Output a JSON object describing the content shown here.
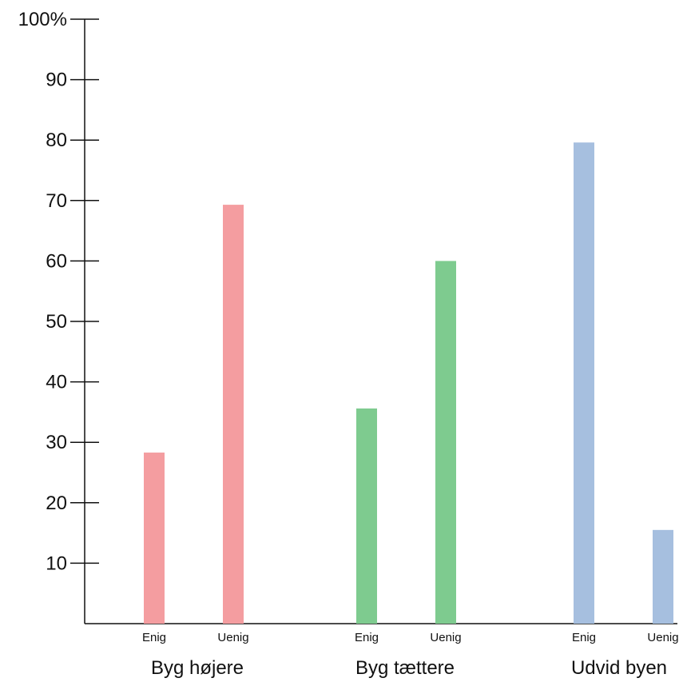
{
  "chart_data": {
    "type": "bar",
    "title": "",
    "xlabel": "",
    "ylabel": "",
    "ylim": [
      0,
      100
    ],
    "grid": false,
    "y_ticks": [
      {
        "value": 10,
        "label": "10"
      },
      {
        "value": 20,
        "label": "20"
      },
      {
        "value": 30,
        "label": "30"
      },
      {
        "value": 40,
        "label": "40"
      },
      {
        "value": 50,
        "label": "50"
      },
      {
        "value": 60,
        "label": "60"
      },
      {
        "value": 70,
        "label": "70"
      },
      {
        "value": 80,
        "label": "80"
      },
      {
        "value": 90,
        "label": "90"
      },
      {
        "value": 100,
        "label": "100%"
      }
    ],
    "groups": [
      {
        "label": "Byg højere",
        "color": "#f49da0",
        "bars": [
          {
            "label": "Enig",
            "value": 28.3
          },
          {
            "label": "Uenig",
            "value": 69.3
          }
        ]
      },
      {
        "label": "Byg tættere",
        "color": "#7ecb8f",
        "bars": [
          {
            "label": "Enig",
            "value": 35.6
          },
          {
            "label": "Uenig",
            "value": 60.0
          }
        ]
      },
      {
        "label": "Udvid byen",
        "color": "#a6bfdf",
        "bars": [
          {
            "label": "Enig",
            "value": 79.6
          },
          {
            "label": "Uenig",
            "value": 15.5
          }
        ]
      }
    ]
  }
}
